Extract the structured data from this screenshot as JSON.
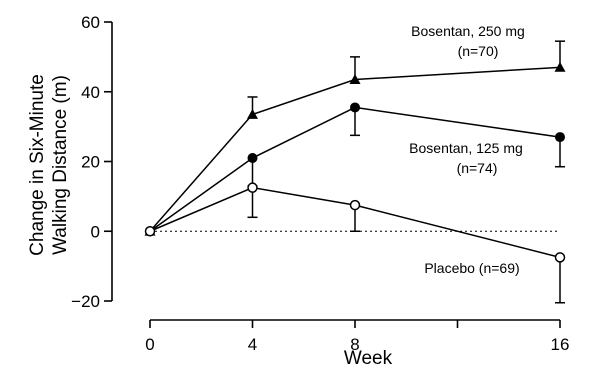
{
  "chart_data": {
    "type": "line",
    "title": "",
    "xlabel": "Week",
    "ylabel_lines": [
      "Change in Six-Minute",
      "Walking Distance (m)"
    ],
    "x_ticks": [
      0,
      4,
      8,
      16
    ],
    "y_ticks": [
      -20,
      0,
      20,
      40,
      60
    ],
    "y_tick_labels": [
      "−20",
      "0",
      "20",
      "40",
      "60"
    ],
    "xlim": [
      0,
      16
    ],
    "ylim": [
      -20,
      60
    ],
    "reference_line_y": 0,
    "series": [
      {
        "label_lines": [
          "Bosentan, 250 mg",
          "(n=70)"
        ],
        "marker": "triangle",
        "x": [
          0,
          4,
          8,
          16
        ],
        "y": [
          0,
          33.5,
          43.5,
          47
        ],
        "err_upper": [
          0,
          5,
          6.5,
          7.5
        ]
      },
      {
        "label_lines": [
          "Bosentan, 125 mg",
          "(n=74)"
        ],
        "marker": "filled-circle",
        "x": [
          0,
          4,
          8,
          16
        ],
        "y": [
          0,
          21,
          35.5,
          27
        ],
        "err_lower": [
          0,
          8,
          8,
          8.5
        ]
      },
      {
        "label_lines": [
          "Placebo (n=69)"
        ],
        "marker": "open-circle",
        "x": [
          0,
          4,
          8,
          16
        ],
        "y": [
          0,
          12.5,
          7.5,
          -7.5
        ],
        "err_lower": [
          0,
          8.5,
          7.5,
          13
        ]
      }
    ]
  }
}
